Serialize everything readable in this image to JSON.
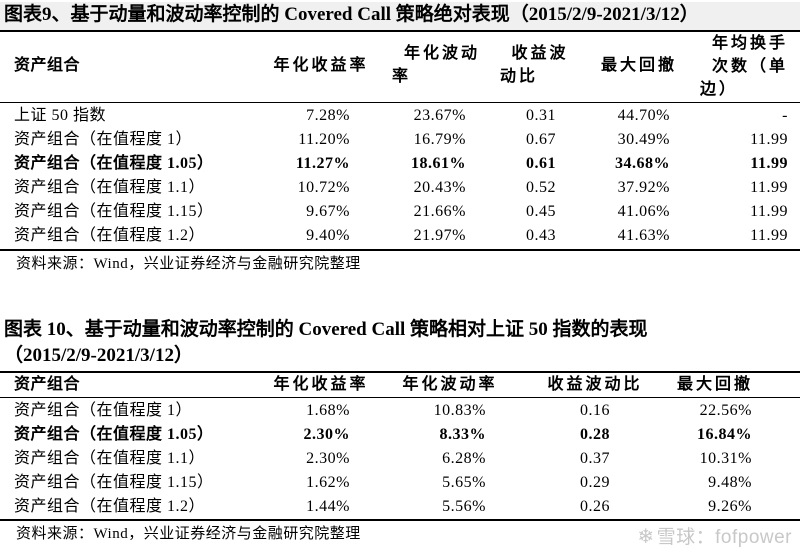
{
  "table1": {
    "title": "图表9、基于动量和波动率控制的 Covered Call 策略绝对表现（2015/2/9-2021/3/12）",
    "headers": {
      "portfolio": "资产组合",
      "annual_return": "年化收益率",
      "annual_vol_1": "年化波动",
      "annual_vol_2": "率",
      "return_vol_1": "收益波",
      "return_vol_2": "动比",
      "max_drawdown": "最大回撤",
      "turnover_1": "年均换手",
      "turnover_2": "次数（单",
      "turnover_3": "边）"
    },
    "rows": [
      {
        "name": "上证 50 指数",
        "ret": "7.28%",
        "vol": "23.67%",
        "ratio": "0.31",
        "mdd": "44.70%",
        "turn": "-"
      },
      {
        "name": "资产组合（在值程度 1）",
        "ret": "11.20%",
        "vol": "16.79%",
        "ratio": "0.67",
        "mdd": "30.49%",
        "turn": "11.99"
      },
      {
        "name": "资产组合（在值程度 1.05）",
        "ret": "11.27%",
        "vol": "18.61%",
        "ratio": "0.61",
        "mdd": "34.68%",
        "turn": "11.99"
      },
      {
        "name": "资产组合（在值程度 1.1）",
        "ret": "10.72%",
        "vol": "20.43%",
        "ratio": "0.52",
        "mdd": "37.92%",
        "turn": "11.99"
      },
      {
        "name": "资产组合（在值程度 1.15）",
        "ret": "9.67%",
        "vol": "21.66%",
        "ratio": "0.45",
        "mdd": "41.06%",
        "turn": "11.99"
      },
      {
        "name": "资产组合（在值程度 1.2）",
        "ret": "9.40%",
        "vol": "21.97%",
        "ratio": "0.43",
        "mdd": "41.63%",
        "turn": "11.99"
      }
    ],
    "source": "资料来源：Wind，兴业证券经济与金融研究院整理"
  },
  "table2": {
    "title_line1": "图表 10、基于动量和波动率控制的 Covered Call 策略相对上证 50 指数的表现",
    "title_line2": "（2015/2/9-2021/3/12）",
    "headers": {
      "portfolio": "资产组合",
      "annual_return": "年化收益率",
      "annual_vol": "年化波动率",
      "return_vol": "收益波动比",
      "max_drawdown": "最大回撤"
    },
    "rows": [
      {
        "name": "资产组合（在值程度 1）",
        "ret": "1.68%",
        "vol": "10.83%",
        "ratio": "0.16",
        "mdd": "22.56%"
      },
      {
        "name": "资产组合（在值程度 1.05）",
        "ret": "2.30%",
        "vol": "8.33%",
        "ratio": "0.28",
        "mdd": "16.84%"
      },
      {
        "name": "资产组合（在值程度 1.1）",
        "ret": "2.30%",
        "vol": "6.28%",
        "ratio": "0.37",
        "mdd": "10.31%"
      },
      {
        "name": "资产组合（在值程度 1.15）",
        "ret": "1.62%",
        "vol": "5.65%",
        "ratio": "0.29",
        "mdd": "9.48%"
      },
      {
        "name": "资产组合（在值程度 1.2）",
        "ret": "1.44%",
        "vol": "5.56%",
        "ratio": "0.26",
        "mdd": "9.26%"
      }
    ],
    "source": "资料来源：Wind，兴业证券经济与金融研究院整理"
  },
  "watermark": {
    "icon": "snowball-logo-icon",
    "text": "雪球：fofpower"
  }
}
